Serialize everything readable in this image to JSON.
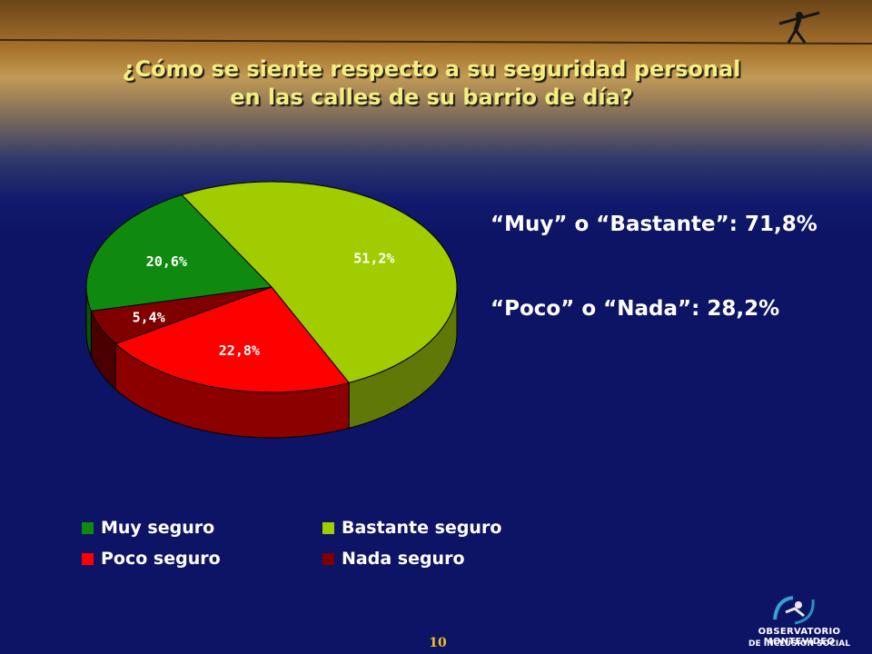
{
  "title": {
    "line1": "¿Cómo se siente respecto a su seguridad personal",
    "line2": "en las calles de su barrio de día?"
  },
  "summary": {
    "line1": "“Muy” o “Bastante”: 71,8%",
    "line2": "“Poco” o “Nada”: 28,2%"
  },
  "chart_data": {
    "type": "pie",
    "title": "¿Cómo se siente respecto a su seguridad personal en las calles de su barrio de día?",
    "slices": [
      {
        "name": "Muy seguro",
        "value": 20.6,
        "label": "20,6%",
        "color": "#0f8a0f",
        "side_color": "#095409"
      },
      {
        "name": "Bastante seguro",
        "value": 51.2,
        "label": "51,2%",
        "color": "#a0cc00",
        "side_color": "#5f7808"
      },
      {
        "name": "Poco seguro",
        "value": 22.8,
        "label": "22,8%",
        "color": "#ff0000",
        "side_color": "#8c0000"
      },
      {
        "name": "Nada seguro",
        "value": 5.4,
        "label": "5,4%",
        "color": "#800000",
        "side_color": "#4a0000"
      }
    ],
    "legend": [
      "Muy seguro",
      "Bastante seguro",
      "Poco seguro",
      "Nada seguro"
    ],
    "legend_position": "bottom"
  },
  "footer": {
    "page_number": "10",
    "logo_line1": "OBSERVATORIO MONTEVIDEO",
    "logo_line2": "DE INCLUSION SOCIAL"
  },
  "icons": {
    "tightrope_walker": "tightrope-walker-icon",
    "logo_mark": "logo-mark-icon"
  }
}
